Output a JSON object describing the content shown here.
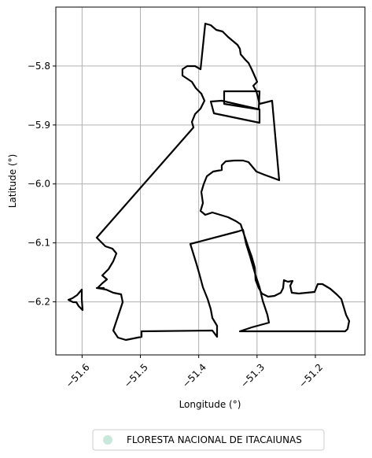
{
  "map": {
    "xlabel": "Longitude (°)",
    "ylabel": "Latitude (°)",
    "grid": true,
    "xlim": [
      -51.645,
      -51.115
    ],
    "ylim": [
      -6.29,
      -5.7
    ],
    "x_ticks": [
      {
        "value": -51.6,
        "label": "−51.6"
      },
      {
        "value": -51.5,
        "label": "−51.5"
      },
      {
        "value": -51.4,
        "label": "−51.4"
      },
      {
        "value": -51.3,
        "label": "−51.3"
      },
      {
        "value": -51.2,
        "label": "−51.2"
      }
    ],
    "y_ticks": [
      {
        "value": -5.8,
        "label": "−5.8"
      },
      {
        "value": -5.9,
        "label": "−5.9"
      },
      {
        "value": -6.0,
        "label": "−6.0"
      },
      {
        "value": -6.1,
        "label": "−6.1"
      },
      {
        "value": -6.2,
        "label": "−6.2"
      }
    ],
    "legend": {
      "placement": "bottom-center",
      "label": "FLORESTA NACIONAL DE ITACAIUNAS",
      "marker_color": "#c9e8dc"
    },
    "boundary_color": "#000000",
    "grid_color": "#b0b0b0"
  }
}
